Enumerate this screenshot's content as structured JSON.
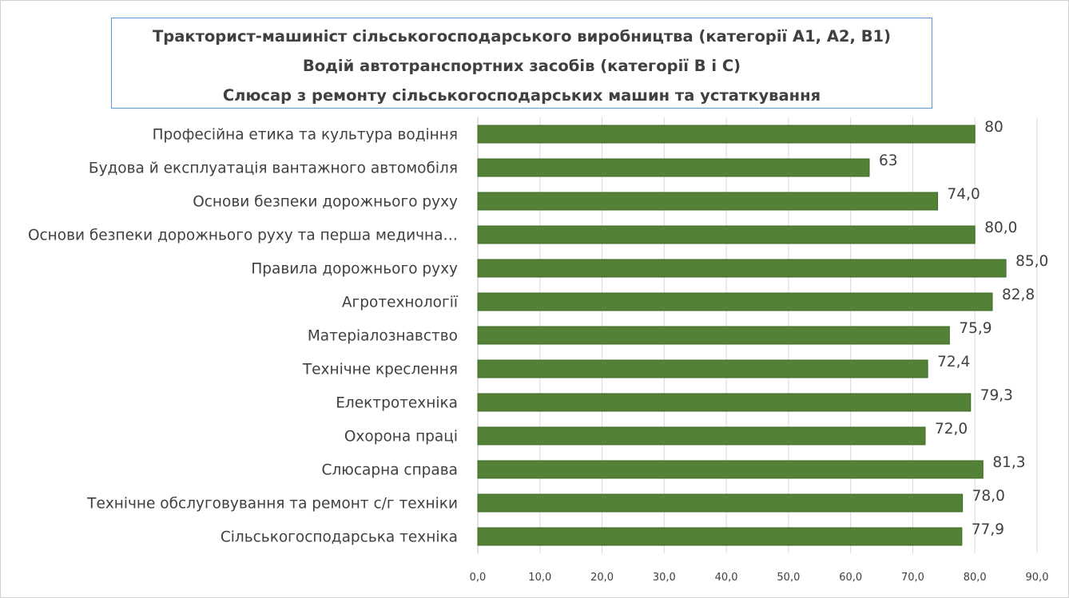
{
  "chart_data": {
    "type": "bar",
    "orientation": "horizontal",
    "title_lines": [
      "Тракторист-машиніст сільськогосподарського виробництва (категорії А1, А2, В1)",
      "Водій автотранспортних засобів (категорії В і С)",
      "Слюсар з ремонту сільськогосподарських машин та устаткування"
    ],
    "categories": [
      "Професійна етика та культура водіння",
      "Будова й експлуатація вантажного автомобіля",
      "Основи безпеки дорожнього руху",
      "Основи безпеки дорожнього руху та перша медична…",
      "Правила дорожнього руху",
      "Агротехнології",
      "Матеріалознавство",
      "Технічне креслення",
      "Електротехніка",
      "Охорона праці",
      "Слюсарна справа",
      "Технічне обслуговування та ремонт с/г техніки",
      "Сільськогосподарська техніка"
    ],
    "values": [
      80,
      63,
      74.0,
      80.0,
      85.0,
      82.8,
      75.9,
      72.4,
      79.3,
      72.0,
      81.3,
      78.0,
      77.9
    ],
    "value_labels": [
      "80",
      "63",
      "74,0",
      "80,0",
      "85,0",
      "82,8",
      "75,9",
      "72,4",
      "79,3",
      "72,0",
      "81,3",
      "78,0",
      "77,9"
    ],
    "x_ticks": [
      "0,0",
      "10,0",
      "20,0",
      "30,0",
      "40,0",
      "50,0",
      "60,0",
      "70,0",
      "80,0",
      "90,0"
    ],
    "xlim": [
      0,
      90
    ],
    "grid": "vertical",
    "legend": "none",
    "bar_color": "#538135",
    "bar_border_color": "#3f6b28",
    "grid_color": "#d9d9d9",
    "text_color": "#404040",
    "title_border_color": "#5b9bd5"
  }
}
